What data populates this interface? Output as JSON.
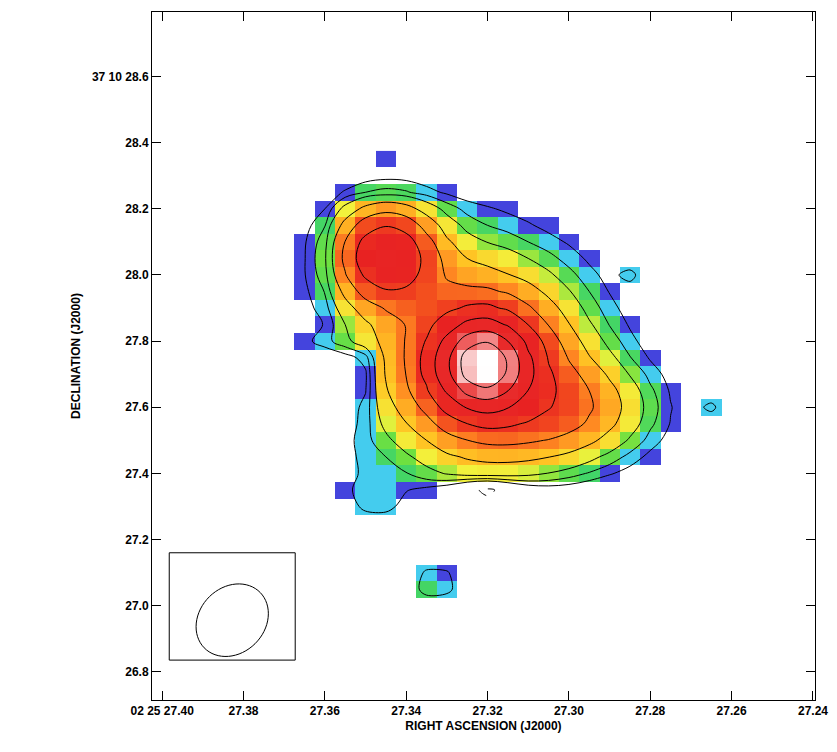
{
  "chart_data": {
    "type": "contour",
    "xlabel": "RIGHT ASCENSION (J2000)",
    "ylabel": "DECLINATION (J2000)",
    "xlim": [
      27.4025,
      27.2395
    ],
    "ylim": [
      26.715,
      28.795
    ],
    "xticks": [
      {
        "value": 27.4,
        "label": "02 25 27.40"
      },
      27.38,
      27.36,
      27.34,
      27.32,
      {
        "value": 27.3,
        "label": "27.30"
      },
      27.28,
      27.26,
      27.24
    ],
    "yticks": [
      {
        "value": 28.6,
        "label": "37 10 28.6"
      },
      28.4,
      28.2,
      {
        "value": 28,
        "label": "28.0"
      },
      27.8,
      27.6,
      27.4,
      27.2,
      {
        "value": 27,
        "label": "27.0"
      },
      26.8
    ],
    "x": [
      27.37,
      27.365,
      27.36,
      27.355,
      27.35,
      27.345,
      27.34,
      27.335,
      27.33,
      27.325,
      27.32,
      27.315,
      27.31,
      27.305,
      27.3,
      27.295,
      27.29,
      27.285,
      27.28,
      27.275,
      27.27,
      27.265,
      27.26
    ],
    "y": [
      26.95,
      27.0,
      27.05,
      27.1,
      27.15,
      27.2,
      27.25,
      27.3,
      27.35,
      27.4,
      27.45,
      27.5,
      27.55,
      27.6,
      27.65,
      27.7,
      27.75,
      27.8,
      27.85,
      27.9,
      27.95,
      28.0,
      28.05,
      28.1,
      28.15,
      28.2,
      28.25,
      28.3,
      28.35
    ],
    "cells": [
      [
        0,
        0,
        0,
        0,
        0,
        0,
        0,
        0,
        0,
        0,
        0,
        0,
        0,
        0,
        0,
        0,
        0,
        0,
        0,
        0,
        0,
        0,
        0
      ],
      [
        0,
        0,
        0,
        0,
        0,
        0,
        0,
        0,
        0,
        0,
        0,
        0,
        0,
        0,
        0,
        0,
        0,
        0,
        0,
        0,
        0,
        0,
        0
      ],
      [
        0,
        0,
        0,
        0,
        0,
        0,
        0,
        3.9,
        3.4,
        0,
        0,
        0,
        0,
        0,
        0,
        0,
        0,
        0,
        0,
        0,
        0,
        0,
        0
      ],
      [
        0,
        0,
        0,
        0,
        0,
        0,
        0,
        3.0,
        2.8,
        0,
        0,
        0,
        0,
        0,
        0,
        0,
        0,
        0,
        0,
        0,
        0,
        0,
        0
      ],
      [
        0,
        0,
        0,
        0,
        0,
        0,
        0,
        0,
        0,
        0,
        0,
        0,
        0,
        0,
        0,
        0,
        0,
        0,
        0,
        0,
        0,
        0,
        0
      ],
      [
        0,
        0,
        0,
        0,
        0,
        0,
        0,
        0,
        0,
        0,
        0,
        0,
        0,
        0,
        0,
        0,
        0,
        0,
        0,
        0,
        0,
        0,
        0
      ],
      [
        0,
        0,
        0,
        0,
        1.2,
        1.3,
        0.5,
        0,
        0,
        0,
        0,
        0,
        0,
        0,
        0,
        0,
        0,
        0,
        0,
        0,
        0,
        0,
        0
      ],
      [
        0,
        0,
        0,
        1.4,
        3.0,
        3.1,
        1.8,
        0.8,
        0,
        -0.5,
        -1.2,
        -0.5,
        0,
        0,
        0,
        0,
        0,
        0,
        0,
        0,
        0,
        0,
        0
      ],
      [
        0,
        0,
        0.6,
        2.0,
        3.4,
        3.5,
        2.6,
        2.0,
        1.0,
        -1.5,
        -3.2,
        -1.2,
        0.8,
        1.4,
        1.3,
        0.8,
        0.4,
        0,
        0,
        0,
        0,
        0,
        0
      ],
      [
        0.5,
        0.7,
        1.0,
        1.6,
        3.0,
        3.4,
        3.9,
        5.1,
        6.2,
        7.0,
        7.3,
        7.2,
        6.7,
        5.9,
        4.9,
        3.8,
        2.7,
        1.8,
        1.1,
        0.6,
        0.3,
        0,
        0
      ],
      [
        0.6,
        0.9,
        1.3,
        1.9,
        3.0,
        4.0,
        5.5,
        7.2,
        9.1,
        10.5,
        11.3,
        11.4,
        11.0,
        10.1,
        8.7,
        6.9,
        5.1,
        3.4,
        2.0,
        1.1,
        0.6,
        0.3,
        0
      ],
      [
        0.2,
        0.4,
        0.8,
        1.8,
        3.4,
        5.3,
        7.5,
        10.0,
        13.2,
        15.9,
        17.5,
        17.7,
        16.9,
        15.7,
        13.7,
        11.1,
        8.3,
        5.6,
        3.3,
        1.8,
        0.9,
        0.4,
        0
      ],
      [
        0.2,
        0.4,
        0.8,
        1.5,
        3.2,
        6.8,
        9.8,
        13.6,
        19.3,
        24.9,
        27.8,
        26.7,
        23.9,
        21.4,
        18.6,
        15.0,
        11.1,
        7.5,
        4.4,
        2.4,
        1.2,
        0.5,
        0
      ],
      [
        0.3,
        0.5,
        0.8,
        1.4,
        3.0,
        8.1,
        12.1,
        18.1,
        28.8,
        41.2,
        46.5,
        40.7,
        31.7,
        25.6,
        21.3,
        16.9,
        12.4,
        8.3,
        4.9,
        2.6,
        1.3,
        3.2,
        0
      ],
      [
        0.3,
        0.5,
        0.8,
        1.3,
        2.4,
        9.5,
        14.5,
        23.6,
        42.1,
        66.1,
        74.9,
        60.2,
        39.7,
        27.4,
        21.0,
        16.0,
        11.5,
        7.5,
        4.4,
        2.3,
        1.1,
        0.5,
        0
      ],
      [
        0.3,
        0.5,
        0.9,
        1.4,
        2.2,
        10.4,
        16.2,
        27.9,
        53.4,
        87.8,
        99.8,
        76.5,
        45.0,
        26.8,
        18.6,
        13.3,
        9.2,
        5.8,
        3.4,
        1.8,
        0.9,
        0.4,
        0
      ],
      [
        0.4,
        0.7,
        1.1,
        1.7,
        3.2,
        10.8,
        16.6,
        28.5,
        54.6,
        89.9,
        100,
        76.9,
        43.4,
        24.0,
        15.4,
        10.3,
        6.8,
        4.1,
        2.3,
        1.2,
        0.6,
        0.3,
        0
      ],
      [
        1.3,
        2.0,
        3.3,
        5.2,
        7.8,
        11.4,
        16.4,
        25.7,
        44.8,
        70.0,
        78.2,
        59.9,
        35.1,
        20.0,
        12.6,
        8.1,
        5.1,
        3.0,
        1.6,
        0.9,
        0.5,
        0,
        0
      ],
      [
        0.8,
        1.7,
        2.6,
        6.0,
        9.1,
        12.6,
        16.3,
        21.7,
        31.6,
        44.2,
        47.9,
        38.2,
        24.8,
        15.7,
        10.2,
        6.4,
        3.9,
        2.3,
        1.2,
        0.7,
        0.4,
        0,
        0
      ],
      [
        0.9,
        1.9,
        3.2,
        8.0,
        12.6,
        16.6,
        18.3,
        19.5,
        22.4,
        26.5,
        27.4,
        23.1,
        17.0,
        11.9,
        8.0,
        5.0,
        3.1,
        1.7,
        1.0,
        0.5,
        0.3,
        0,
        0
      ],
      [
        1.0,
        2.1,
        4.1,
        11.4,
        18.9,
        23.8,
        23.1,
        19.6,
        17.8,
        17.7,
        17.3,
        15.1,
        12.0,
        8.9,
        6.2,
        4.0,
        2.4,
        1.4,
        0.8,
        0.5,
        0,
        0,
        0
      ],
      [
        1.0,
        2.4,
        5.0,
        15.5,
        26.6,
        33.1,
        29.6,
        21.3,
        15.3,
        12.8,
        11.6,
        10.2,
        8.4,
        6.5,
        4.6,
        3.0,
        1.9,
        3.2,
        0.7,
        0.3,
        0,
        0,
        0
      ],
      [
        1.0,
        2.4,
        5.5,
        17.8,
        31.1,
        38.4,
        33.2,
        21.8,
        13.6,
        10.0,
        8.6,
        7.4,
        6.0,
        4.6,
        3.3,
        2.2,
        1.4,
        0.9,
        0.5,
        0.3,
        0,
        0,
        0
      ],
      [
        0.8,
        2.3,
        5.0,
        16.2,
        28.2,
        34.6,
        29.5,
        18.7,
        10.8,
        7.3,
        5.9,
        5.0,
        4.0,
        3.1,
        2.3,
        1.5,
        1.0,
        0.7,
        0.4,
        0,
        0,
        0,
        0
      ],
      [
        0.7,
        1.8,
        3.9,
        11.7,
        19.9,
        24.3,
        20.8,
        13.3,
        7.8,
        5.1,
        4.0,
        3.3,
        2.7,
        2.0,
        1.5,
        1.1,
        0.7,
        0.4,
        0.3,
        0,
        0,
        0,
        0
      ],
      [
        0.9,
        1.8,
        2.5,
        7.0,
        11.3,
        13.6,
        11.9,
        8.0,
        5.0,
        3.4,
        2.7,
        2.2,
        1.7,
        1.3,
        1.0,
        0.7,
        0.5,
        0.3,
        0,
        0,
        0,
        0,
        0
      ],
      [
        0.5,
        0.8,
        1.5,
        2.7,
        4.0,
        4.6,
        4.2,
        3.1,
        2.2,
        1.5,
        1.3,
        1.0,
        0.8,
        0.6,
        0.5,
        0.4,
        0.3,
        0,
        0,
        0,
        0,
        0,
        0
      ],
      [
        0.3,
        0.5,
        0.8,
        1.2,
        1.6,
        1.9,
        1.8,
        1.4,
        1.1,
        0.9,
        0.7,
        0.6,
        0.4,
        0.4,
        0,
        0,
        0,
        0,
        0,
        0,
        0,
        0,
        0
      ],
      [
        0,
        0,
        0,
        0,
        0,
        2.2,
        0,
        0,
        0,
        0,
        0,
        0,
        0,
        0,
        0,
        0,
        0,
        0,
        0,
        0,
        0,
        0,
        0
      ]
    ],
    "contour_levels": [
      -2.5,
      2.5,
      4,
      6,
      10,
      16,
      25,
      40,
      60,
      80
    ],
    "beam": {
      "major": 0.235,
      "minor": 0.195,
      "pa": -40
    }
  }
}
